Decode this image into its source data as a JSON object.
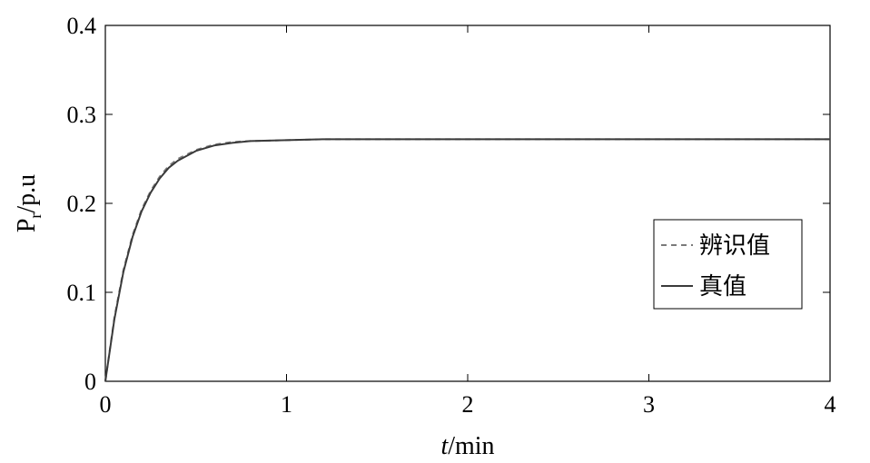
{
  "chart_data": {
    "type": "line",
    "xlabel_italic": "t",
    "xlabel_rest": "/min",
    "ylabel_main": "P",
    "ylabel_sub": "r",
    "ylabel_rest": "/p.u",
    "xlim": [
      0,
      4
    ],
    "ylim": [
      0,
      0.4
    ],
    "xticks": [
      "0",
      "1",
      "2",
      "3",
      "4"
    ],
    "yticks": [
      "0",
      "0.1",
      "0.2",
      "0.3",
      "0.4"
    ],
    "grid": false,
    "legend_position": "right",
    "series": [
      {
        "name": "辨识值",
        "style": "dashed",
        "color": "#7a7a7a",
        "x": [
          0,
          0.05,
          0.1,
          0.15,
          0.2,
          0.25,
          0.3,
          0.35,
          0.4,
          0.5,
          0.6,
          0.7,
          0.8,
          1.0,
          1.2,
          1.5,
          2.0,
          3.0,
          4.0
        ],
        "y": [
          0,
          0.072,
          0.125,
          0.164,
          0.193,
          0.214,
          0.23,
          0.242,
          0.25,
          0.26,
          0.266,
          0.269,
          0.27,
          0.271,
          0.272,
          0.272,
          0.272,
          0.272,
          0.272
        ]
      },
      {
        "name": "真值",
        "style": "solid",
        "color": "#3a3a3a",
        "x": [
          0,
          0.05,
          0.1,
          0.15,
          0.2,
          0.25,
          0.3,
          0.35,
          0.4,
          0.5,
          0.6,
          0.7,
          0.8,
          1.0,
          1.2,
          1.5,
          2.0,
          3.0,
          4.0
        ],
        "y": [
          0,
          0.07,
          0.123,
          0.162,
          0.191,
          0.212,
          0.228,
          0.24,
          0.248,
          0.259,
          0.265,
          0.268,
          0.27,
          0.271,
          0.272,
          0.272,
          0.272,
          0.272,
          0.272
        ]
      }
    ]
  }
}
